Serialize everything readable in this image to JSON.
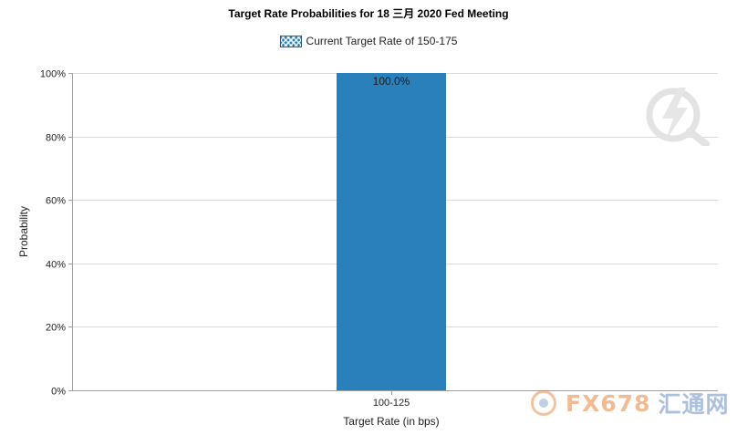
{
  "chart_data": {
    "type": "bar",
    "title": "Target Rate Probabilities for 18 三月 2020 Fed Meeting",
    "legend": {
      "label": "Current Target Rate of 150-175",
      "placement": "top-center"
    },
    "categories": [
      "100-125"
    ],
    "values": [
      100.0
    ],
    "data_labels": [
      "100.0%"
    ],
    "xlabel": "Target Rate (in bps)",
    "ylabel": "Probability",
    "ylim": [
      0,
      100
    ],
    "yticks": [
      "0%",
      "20%",
      "40%",
      "60%",
      "80%",
      "100%"
    ],
    "grid": true,
    "colors": {
      "bar": "#2a80bb",
      "grid": "#d9d9d9",
      "axis": "#a0a0a0"
    }
  },
  "watermark": {
    "brand": "FX678",
    "brand_cn": "汇通网",
    "corner_icon": "lightning-magnifier-icon"
  }
}
